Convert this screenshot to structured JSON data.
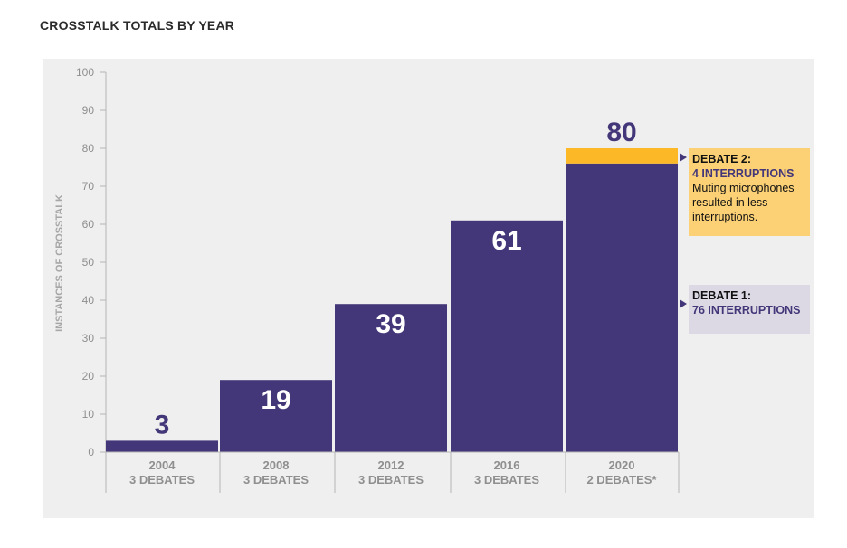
{
  "title": "CROSSTALK TOTALS BY YEAR",
  "colors": {
    "bar": "#433779",
    "highlight": "#fdb827",
    "label_dark": "#433779",
    "label_light": "#ffffff"
  },
  "chart_data": {
    "type": "bar",
    "title": "CROSSTALK TOTALS BY YEAR",
    "ylabel": "INSTANCES OF CROSSTALK",
    "xlabel": "",
    "ylim": [
      0,
      100
    ],
    "yticks": [
      0,
      10,
      20,
      30,
      40,
      50,
      60,
      70,
      80,
      90,
      100
    ],
    "categories": [
      {
        "year": "2004",
        "debates": "3 DEBATES"
      },
      {
        "year": "2008",
        "debates": "3 DEBATES"
      },
      {
        "year": "2012",
        "debates": "3 DEBATES"
      },
      {
        "year": "2016",
        "debates": "3 DEBATES"
      },
      {
        "year": "2020",
        "debates": "2 DEBATES*"
      }
    ],
    "values": [
      3,
      19,
      39,
      61,
      80
    ],
    "data_labels": [
      "3",
      "19",
      "39",
      "61",
      "80"
    ],
    "stacked_2020": [
      {
        "name": "DEBATE 1",
        "value": 76
      },
      {
        "name": "DEBATE 2",
        "value": 4
      }
    ],
    "grid": false
  },
  "callouts": {
    "debate2": {
      "head": "DEBATE 2:",
      "sub": "4 INTERRUPTIONS",
      "desc": "Muting microphones resulted in less interruptions."
    },
    "debate1": {
      "head": "DEBATE 1:",
      "sub": "76 INTERRUPTIONS"
    }
  }
}
